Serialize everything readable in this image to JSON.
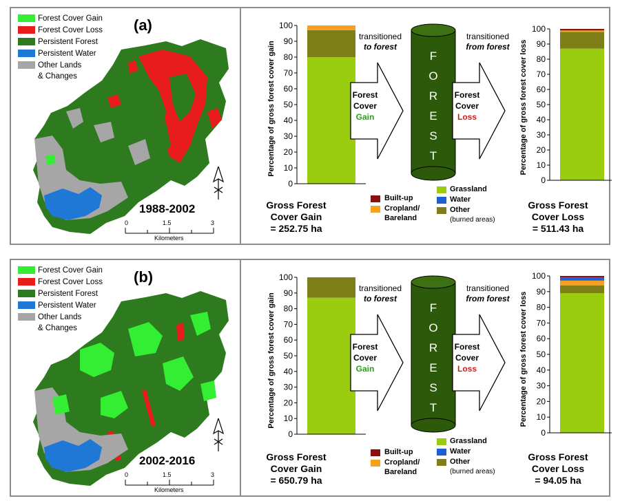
{
  "map_legend": {
    "items": [
      {
        "label": "Forest Cover Gain",
        "color": "#33ee33"
      },
      {
        "label": "Forest Cover Loss",
        "color": "#e81c1c"
      },
      {
        "label": "Persistent Forest",
        "color": "#2d7a1f"
      },
      {
        "label": "Persistent Water",
        "color": "#1f78d6"
      },
      {
        "label": "Other Lands",
        "color": "#a6a6a6"
      }
    ],
    "other_cont": "& Changes"
  },
  "scale_bar": {
    "ticks": [
      "0",
      "1.5",
      "3"
    ],
    "unit": "Kilometers"
  },
  "flow": {
    "transitioned": "transitioned",
    "to_forest": "to forest",
    "from_forest": "from forest",
    "gain_line1": "Forest",
    "gain_line2": "Cover",
    "gain_word": "Gain",
    "loss_line1": "Forest",
    "loss_line2": "Cover",
    "loss_word": "Loss",
    "cylinder_letters": [
      "F",
      "O",
      "R",
      "E",
      "S",
      "T"
    ]
  },
  "category_legend": {
    "builtup": "Built-up",
    "cropland": "Cropland/",
    "bareland": "Bareland",
    "grassland": "Grassland",
    "water": "Water",
    "other": "Other",
    "other_note": "(burned areas)"
  },
  "colors": {
    "Grassland": "#9acd0f",
    "Other": "#7f7f1a",
    "Cropland/Bareland": "#f5a01e",
    "Water": "#1f5fd6",
    "Built-up": "#8b1010",
    "cylinder": "#2d5a0a"
  },
  "panels": [
    {
      "label": "(a)",
      "period": "1988-2002",
      "gain_caption": [
        "Gross Forest",
        "Cover Gain",
        "= 252.75 ha"
      ],
      "loss_caption": [
        "Gross Forest",
        "Cover Loss",
        "= 511.43 ha"
      ],
      "show_water_legend": false
    },
    {
      "label": "(b)",
      "period": "2002-2016",
      "gain_caption": [
        "Gross Forest",
        "Cover Gain",
        "= 650.79 ha"
      ],
      "loss_caption": [
        "Gross Forest",
        "Cover Loss",
        "= 94.05 ha"
      ],
      "show_water_legend": true
    }
  ],
  "chart_data": [
    {
      "type": "bar",
      "stacked": true,
      "panel": "(a)",
      "ylabel": "Percentage of gross forest cover gain",
      "ylim": [
        0,
        100
      ],
      "yticks": [
        0,
        10,
        20,
        30,
        40,
        50,
        60,
        70,
        80,
        90,
        100
      ],
      "series": [
        {
          "name": "Grassland",
          "values": [
            80
          ]
        },
        {
          "name": "Other",
          "values": [
            17
          ]
        },
        {
          "name": "Cropland/Bareland",
          "values": [
            3
          ]
        }
      ]
    },
    {
      "type": "bar",
      "stacked": true,
      "panel": "(a)",
      "ylabel": "Percentage of gross forest cover loss",
      "ylim": [
        0,
        100
      ],
      "yticks": [
        0,
        10,
        20,
        30,
        40,
        50,
        60,
        70,
        80,
        90,
        100
      ],
      "series": [
        {
          "name": "Grassland",
          "values": [
            87
          ]
        },
        {
          "name": "Other",
          "values": [
            11
          ]
        },
        {
          "name": "Cropland/Bareland",
          "values": [
            1
          ]
        },
        {
          "name": "Built-up",
          "values": [
            1
          ]
        }
      ]
    },
    {
      "type": "bar",
      "stacked": true,
      "panel": "(b)",
      "ylabel": "Percentage of gross forest cover gain",
      "ylim": [
        0,
        100
      ],
      "yticks": [
        0,
        10,
        20,
        30,
        40,
        50,
        60,
        70,
        80,
        90,
        100
      ],
      "series": [
        {
          "name": "Grassland",
          "values": [
            87
          ]
        },
        {
          "name": "Other",
          "values": [
            13
          ]
        }
      ]
    },
    {
      "type": "bar",
      "stacked": true,
      "panel": "(b)",
      "ylabel": "Percentage of gross forest cover loss",
      "ylim": [
        0,
        100
      ],
      "yticks": [
        0,
        10,
        20,
        30,
        40,
        50,
        60,
        70,
        80,
        90,
        100
      ],
      "series": [
        {
          "name": "Grassland",
          "values": [
            89
          ]
        },
        {
          "name": "Other",
          "values": [
            5
          ]
        },
        {
          "name": "Cropland/Bareland",
          "values": [
            3
          ]
        },
        {
          "name": "Water",
          "values": [
            2
          ]
        },
        {
          "name": "Built-up",
          "values": [
            1
          ]
        }
      ]
    }
  ]
}
